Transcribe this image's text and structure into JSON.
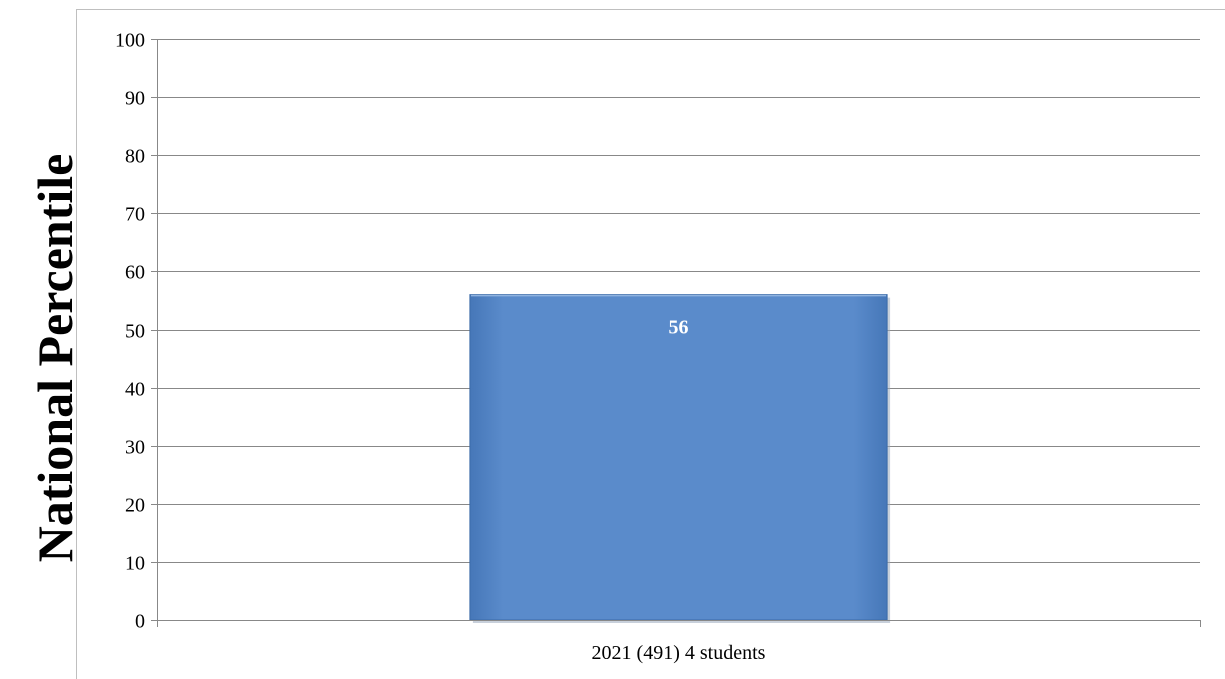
{
  "chart_data": {
    "type": "bar",
    "title": "",
    "xlabel": "",
    "ylabel": "National Percentile",
    "ylim": [
      0,
      100
    ],
    "yticks": [
      0,
      10,
      20,
      30,
      40,
      50,
      60,
      70,
      80,
      90,
      100
    ],
    "categories": [
      "2021 (491) 4 students"
    ],
    "values": [
      56
    ],
    "data_labels": [
      "56"
    ],
    "grid": true,
    "legend": "none",
    "bar_color": "#5588c8",
    "bar_border_color": "#3a6aa8",
    "grid_color": "#888888"
  }
}
